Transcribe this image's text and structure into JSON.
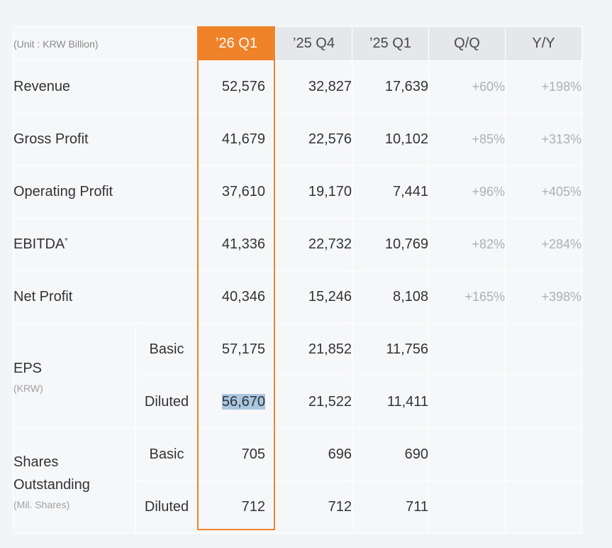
{
  "unit_label": "(Unit : KRW Billion)",
  "columns": [
    "’26 Q1",
    "’25 Q4",
    "’25 Q1",
    "Q/Q",
    "Y/Y"
  ],
  "rows": [
    {
      "label": "Revenue",
      "values": [
        "52,576",
        "32,827",
        "17,639"
      ],
      "qq": "+60%",
      "yy": "+198%"
    },
    {
      "label": "Gross Profit",
      "values": [
        "41,679",
        "22,576",
        "10,102"
      ],
      "qq": "+85%",
      "yy": "+313%"
    },
    {
      "label": "Operating Profit",
      "values": [
        "37,610",
        "19,170",
        "7,441"
      ],
      "qq": "+96%",
      "yy": "+405%"
    },
    {
      "label": "EBITDA",
      "asterisk": "*",
      "values": [
        "41,336",
        "22,732",
        "10,769"
      ],
      "qq": "+82%",
      "yy": "+284%"
    },
    {
      "label": "Net Profit",
      "values": [
        "40,346",
        "15,246",
        "8,108"
      ],
      "qq": "+165%",
      "yy": "+398%"
    }
  ],
  "eps": {
    "label": "EPS",
    "unit": "(KRW)",
    "basic": {
      "label": "Basic",
      "values": [
        "57,175",
        "21,852",
        "11,756"
      ]
    },
    "diluted": {
      "label": "Diluted",
      "values": [
        "56,670",
        "21,522",
        "11,411"
      ]
    }
  },
  "shares": {
    "label_line1": "Shares",
    "label_line2": "Outstanding",
    "unit": "(Mil. Shares)",
    "basic": {
      "label": "Basic",
      "values": [
        "705",
        "696",
        "690"
      ]
    },
    "diluted": {
      "label": "Diluted",
      "values": [
        "712",
        "712",
        "711"
      ]
    }
  },
  "colors": {
    "highlight": "#f0822a",
    "header_bg": "#e6e7ea",
    "selection": "#a8c7e0"
  }
}
